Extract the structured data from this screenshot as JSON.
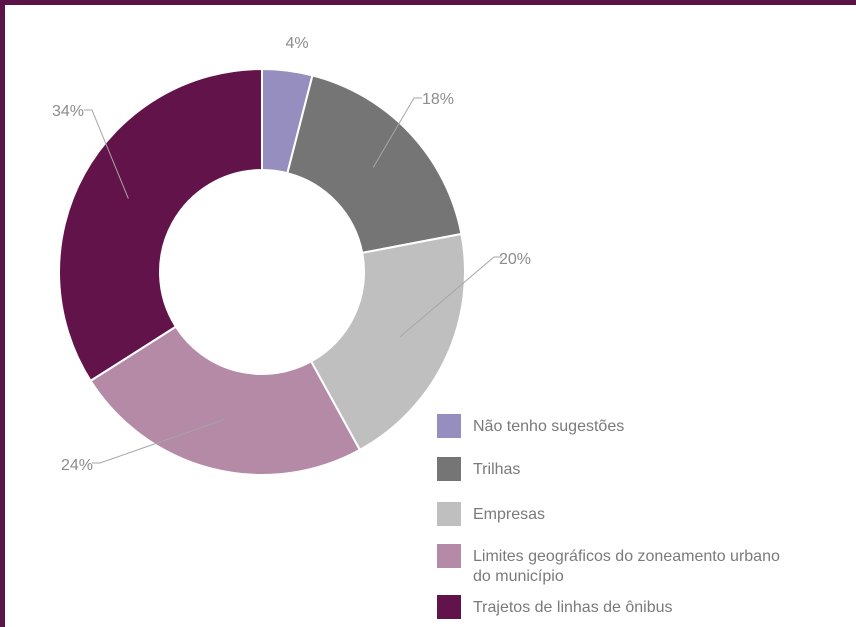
{
  "chart_data": {
    "type": "pie",
    "variant": "donut",
    "title": "",
    "categories": [
      "Não tenho sugestões",
      "Trilhas",
      "Empresas",
      "Limites geográficos do zoneamento urbano do município",
      "Trajetos de linhas de ônibus"
    ],
    "legend_lines": [
      [
        "Não tenho sugestões"
      ],
      [
        "Trilhas"
      ],
      [
        "Empresas"
      ],
      [
        "Limites geográficos do zoneamento urbano",
        "do município"
      ],
      [
        "Trajetos de linhas de ônibus"
      ]
    ],
    "values": [
      4,
      18,
      20,
      24,
      34
    ],
    "data_labels": [
      "4%",
      "18%",
      "20%",
      "24%",
      "34%"
    ],
    "colors": [
      "#978ec0",
      "#757575",
      "#bfbfbf",
      "#b48aa7",
      "#62144a"
    ],
    "legend_position": "bottom-right"
  }
}
